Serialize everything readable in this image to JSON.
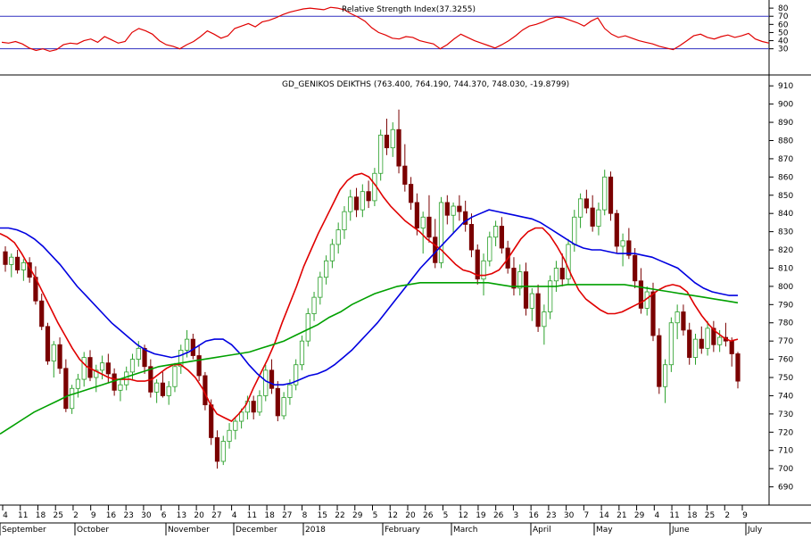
{
  "chart_data": [
    {
      "type": "line",
      "title": "Relative Strength Index(37.3255)",
      "ylim": [
        0,
        90
      ],
      "yticks": [
        30,
        40,
        50,
        60,
        70,
        80
      ],
      "levels": [
        30,
        70
      ],
      "series": [
        {
          "color": "#e00000",
          "values": [
            38,
            37,
            39,
            36,
            31,
            28,
            30,
            27,
            29,
            35,
            37,
            36,
            40,
            42,
            38,
            45,
            41,
            37,
            39,
            50,
            55,
            52,
            48,
            40,
            35,
            33,
            30,
            35,
            39,
            45,
            52,
            48,
            43,
            46,
            55,
            58,
            61,
            57,
            63,
            65,
            68,
            72,
            75,
            77,
            79,
            80,
            79,
            78,
            81,
            80,
            78,
            73,
            69,
            64,
            56,
            50,
            47,
            43,
            42,
            45,
            44,
            40,
            38,
            36,
            30,
            35,
            42,
            48,
            44,
            40,
            37,
            34,
            31,
            35,
            40,
            46,
            53,
            58,
            60,
            63,
            67,
            69,
            68,
            65,
            62,
            58,
            64,
            68,
            55,
            48,
            44,
            46,
            43,
            40,
            38,
            36,
            33,
            31,
            29,
            34,
            40,
            46,
            48,
            44,
            42,
            45,
            47,
            44,
            46,
            49,
            42,
            39,
            37
          ]
        }
      ]
    },
    {
      "type": "candlestick",
      "title": "GD_GENIKOS DEIKTHS (763.400, 764.190, 744.370, 748.030, -19.8799)",
      "ylim": [
        680,
        915
      ],
      "yticks": [
        690,
        700,
        710,
        720,
        730,
        740,
        750,
        760,
        770,
        780,
        790,
        800,
        810,
        820,
        830,
        840,
        850,
        860,
        870,
        880,
        890,
        900,
        910
      ],
      "x_day_ticks": [
        "4",
        "11",
        "18",
        "25",
        "2",
        "9",
        "16",
        "23",
        "30",
        "6",
        "13",
        "20",
        "27",
        "4",
        "11",
        "18",
        "27",
        "8",
        "15",
        "22",
        "29",
        "5",
        "12",
        "20",
        "26",
        "5",
        "12",
        "19",
        "26",
        "3",
        "16",
        "23",
        "30",
        "7",
        "14",
        "21",
        "29",
        "4",
        "11",
        "18",
        "25",
        "2",
        "9"
      ],
      "x_month_labels": [
        "September",
        "October",
        "November",
        "December",
        "2018",
        "February",
        "March",
        "April",
        "May",
        "June",
        "July"
      ],
      "candles": [
        [
          819,
          822,
          808,
          812
        ],
        [
          812,
          818,
          805,
          816
        ],
        [
          816,
          820,
          807,
          809
        ],
        [
          809,
          815,
          803,
          813
        ],
        [
          813,
          816,
          802,
          805
        ],
        [
          805,
          811,
          790,
          792
        ],
        [
          792,
          796,
          776,
          778
        ],
        [
          778,
          780,
          757,
          759
        ],
        [
          759,
          770,
          750,
          768
        ],
        [
          768,
          772,
          752,
          755
        ],
        [
          755,
          760,
          731,
          733
        ],
        [
          733,
          746,
          730,
          744
        ],
        [
          744,
          752,
          739,
          749
        ],
        [
          749,
          764,
          745,
          761
        ],
        [
          761,
          765,
          748,
          750
        ],
        [
          750,
          757,
          742,
          754
        ],
        [
          754,
          762,
          749,
          758
        ],
        [
          758,
          763,
          747,
          752
        ],
        [
          752,
          755,
          740,
          743
        ],
        [
          743,
          749,
          737,
          746
        ],
        [
          746,
          756,
          743,
          753
        ],
        [
          753,
          763,
          749,
          760
        ],
        [
          760,
          770,
          756,
          766
        ],
        [
          766,
          768,
          752,
          756
        ],
        [
          756,
          760,
          739,
          742
        ],
        [
          742,
          749,
          736,
          747
        ],
        [
          747,
          753,
          739,
          740
        ],
        [
          740,
          748,
          735,
          745
        ],
        [
          745,
          758,
          742,
          756
        ],
        [
          756,
          768,
          752,
          765
        ],
        [
          765,
          776,
          761,
          771
        ],
        [
          771,
          774,
          760,
          762
        ],
        [
          762,
          768,
          748,
          751
        ],
        [
          751,
          753,
          732,
          735
        ],
        [
          735,
          738,
          713,
          717
        ],
        [
          717,
          721,
          700,
          704
        ],
        [
          704,
          718,
          702,
          715
        ],
        [
          715,
          725,
          711,
          721
        ],
        [
          721,
          728,
          716,
          726
        ],
        [
          726,
          733,
          722,
          731
        ],
        [
          731,
          740,
          727,
          737
        ],
        [
          737,
          740,
          727,
          731
        ],
        [
          731,
          743,
          729,
          740
        ],
        [
          740,
          757,
          737,
          754
        ],
        [
          754,
          760,
          741,
          744
        ],
        [
          744,
          748,
          726,
          729
        ],
        [
          729,
          742,
          727,
          739
        ],
        [
          739,
          749,
          735,
          746
        ],
        [
          746,
          760,
          743,
          757
        ],
        [
          757,
          773,
          754,
          770
        ],
        [
          770,
          788,
          767,
          785
        ],
        [
          785,
          797,
          781,
          794
        ],
        [
          794,
          808,
          790,
          805
        ],
        [
          805,
          817,
          801,
          814
        ],
        [
          814,
          826,
          810,
          823
        ],
        [
          823,
          835,
          818,
          831
        ],
        [
          831,
          844,
          826,
          841
        ],
        [
          841,
          853,
          836,
          849
        ],
        [
          849,
          854,
          838,
          842
        ],
        [
          842,
          856,
          838,
          852
        ],
        [
          852,
          858,
          843,
          847
        ],
        [
          847,
          865,
          844,
          862
        ],
        [
          862,
          886,
          858,
          883
        ],
        [
          883,
          892,
          872,
          876
        ],
        [
          876,
          890,
          871,
          886
        ],
        [
          886,
          897,
          862,
          866
        ],
        [
          866,
          878,
          852,
          856
        ],
        [
          856,
          860,
          842,
          846
        ],
        [
          846,
          851,
          828,
          832
        ],
        [
          832,
          841,
          818,
          838
        ],
        [
          838,
          850,
          824,
          827
        ],
        [
          827,
          837,
          810,
          813
        ],
        [
          813,
          849,
          810,
          846
        ],
        [
          846,
          850,
          834,
          839
        ],
        [
          839,
          846,
          829,
          844
        ],
        [
          844,
          850,
          836,
          841
        ],
        [
          841,
          847,
          830,
          834
        ],
        [
          834,
          840,
          816,
          820
        ],
        [
          820,
          823,
          801,
          804
        ],
        [
          804,
          818,
          795,
          814
        ],
        [
          814,
          830,
          811,
          827
        ],
        [
          827,
          836,
          822,
          833
        ],
        [
          833,
          838,
          818,
          821
        ],
        [
          821,
          825,
          807,
          810
        ],
        [
          810,
          816,
          795,
          799
        ],
        [
          799,
          812,
          795,
          808
        ],
        [
          808,
          813,
          784,
          788
        ],
        [
          788,
          799,
          781,
          796
        ],
        [
          796,
          801,
          775,
          778
        ],
        [
          778,
          790,
          768,
          786
        ],
        [
          786,
          806,
          782,
          803
        ],
        [
          803,
          814,
          797,
          810
        ],
        [
          810,
          818,
          800,
          804
        ],
        [
          804,
          826,
          801,
          823
        ],
        [
          823,
          842,
          819,
          838
        ],
        [
          838,
          851,
          832,
          848
        ],
        [
          848,
          853,
          840,
          843
        ],
        [
          843,
          850,
          830,
          833
        ],
        [
          833,
          846,
          828,
          842
        ],
        [
          842,
          864,
          839,
          860
        ],
        [
          860,
          863,
          836,
          840
        ],
        [
          840,
          842,
          818,
          822
        ],
        [
          822,
          829,
          811,
          825
        ],
        [
          825,
          832,
          815,
          817
        ],
        [
          817,
          821,
          799,
          803
        ],
        [
          803,
          810,
          785,
          788
        ],
        [
          788,
          800,
          784,
          797
        ],
        [
          797,
          802,
          770,
          773
        ],
        [
          773,
          777,
          741,
          745
        ],
        [
          745,
          760,
          736,
          757
        ],
        [
          757,
          783,
          753,
          780
        ],
        [
          780,
          790,
          771,
          786
        ],
        [
          786,
          790,
          773,
          776
        ],
        [
          776,
          780,
          757,
          761
        ],
        [
          761,
          774,
          757,
          771
        ],
        [
          771,
          778,
          763,
          766
        ],
        [
          766,
          781,
          762,
          777
        ],
        [
          777,
          781,
          764,
          768
        ],
        [
          768,
          776,
          764,
          772
        ],
        [
          772,
          780,
          767,
          770
        ],
        [
          770,
          772,
          756,
          763
        ],
        [
          763,
          764,
          744,
          748
        ]
      ],
      "series": [
        {
          "color": "#e00000",
          "values": [
            829,
            827,
            824,
            818,
            811,
            804,
            796,
            788,
            780,
            773,
            766,
            760,
            756,
            754,
            752,
            750,
            749,
            749,
            749,
            748,
            748,
            749,
            752,
            755,
            757,
            757,
            754,
            750,
            744,
            736,
            730,
            728,
            726,
            730,
            735,
            744,
            752,
            760,
            769,
            780,
            790,
            800,
            811,
            820,
            829,
            837,
            845,
            853,
            858,
            861,
            862,
            860,
            855,
            849,
            844,
            840,
            836,
            833,
            830,
            826,
            823,
            820,
            816,
            812,
            809,
            808,
            806,
            806,
            807,
            809,
            814,
            820,
            826,
            830,
            832,
            832,
            828,
            822,
            815,
            806,
            798,
            793,
            790,
            787,
            785,
            785,
            786,
            788,
            790,
            792,
            795,
            798,
            800,
            801,
            800,
            797,
            790,
            784,
            779,
            775,
            772,
            770,
            771
          ]
        },
        {
          "color": "#0000e0",
          "values": [
            832,
            832,
            831,
            829,
            826,
            822,
            817,
            812,
            806,
            800,
            795,
            790,
            785,
            780,
            776,
            772,
            768,
            765,
            763,
            762,
            761,
            762,
            764,
            767,
            770,
            771,
            771,
            768,
            763,
            757,
            752,
            748,
            746,
            746,
            747,
            749,
            751,
            752,
            754,
            757,
            761,
            765,
            770,
            775,
            780,
            786,
            792,
            798,
            804,
            810,
            815,
            820,
            825,
            830,
            835,
            838,
            840,
            842,
            841,
            840,
            839,
            838,
            837,
            835,
            832,
            829,
            826,
            823,
            821,
            820,
            820,
            819,
            818,
            818,
            818,
            817,
            816,
            814,
            812,
            810,
            806,
            802,
            799,
            797,
            796,
            795,
            795
          ]
        },
        {
          "color": "#00a000",
          "values": [
            719,
            723,
            727,
            731,
            734,
            737,
            740,
            742,
            744,
            746,
            748,
            750,
            752,
            754,
            756,
            757,
            758,
            759,
            760,
            761,
            762,
            763,
            764,
            766,
            768,
            770,
            773,
            776,
            779,
            783,
            786,
            790,
            793,
            796,
            798,
            800,
            801,
            802,
            802,
            802,
            802,
            802,
            802,
            802,
            801,
            800,
            800,
            800,
            800,
            800,
            801,
            801,
            801,
            801,
            801,
            801,
            800,
            799,
            798,
            797,
            796,
            795,
            794,
            793,
            792,
            791
          ]
        }
      ]
    }
  ]
}
